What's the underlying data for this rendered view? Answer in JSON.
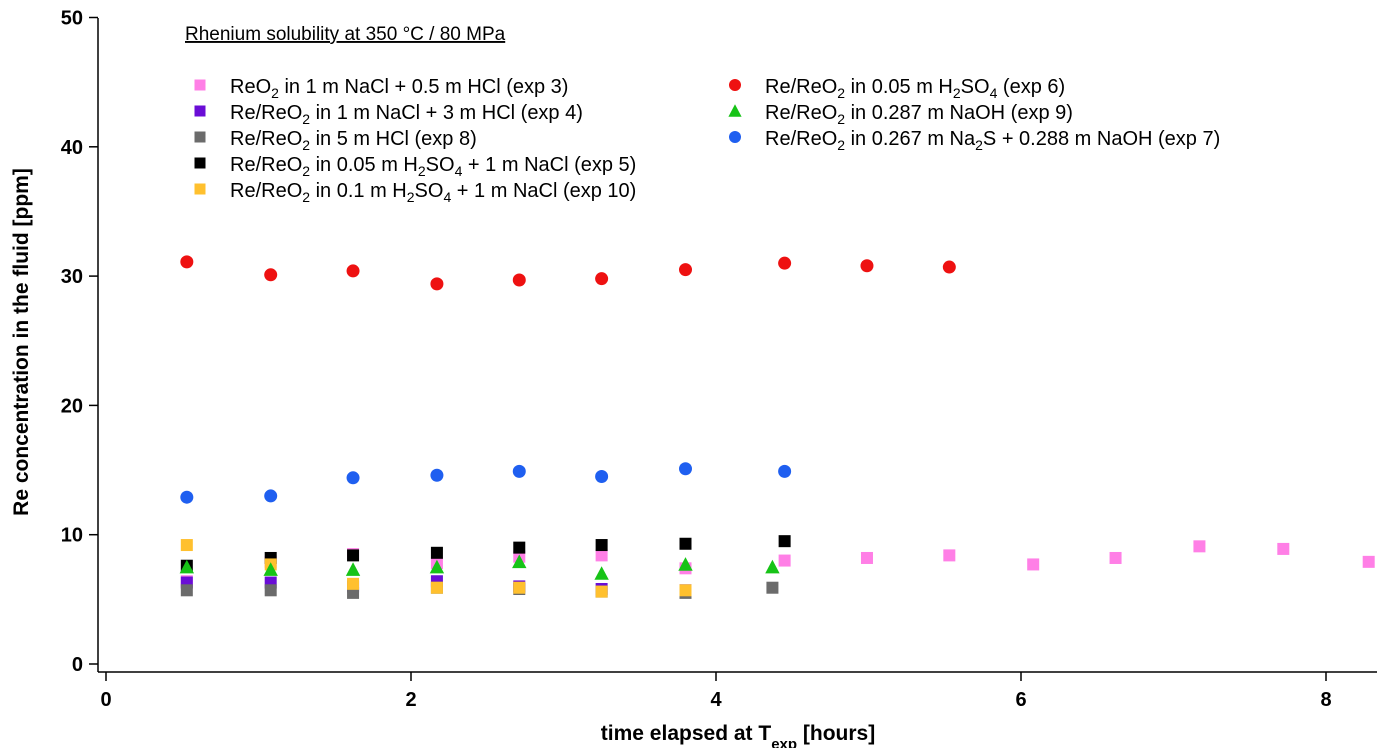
{
  "chart_data": {
    "type": "scatter",
    "title": "Rhenium solubility at 350 °C / 80 MPa",
    "xlabel": {
      "main": "time elapsed at T",
      "sub": "exp",
      "tail": " [hours]"
    },
    "ylabel": "Re concentration in the fluid [ppm]",
    "xlim": [
      0,
      8.3
    ],
    "ylim": [
      0,
      50
    ],
    "xticks": [
      0,
      2,
      4,
      6,
      8
    ],
    "yticks": [
      0,
      10,
      20,
      30,
      40,
      50
    ],
    "grid": false,
    "legend_position": "top",
    "series": [
      {
        "name": "ReO2 in 1 m NaCl + 0.5 m HCl (exp 3)",
        "label_parts": [
          [
            "ReO",
            ""
          ],
          [
            "2",
            "sub"
          ],
          [
            " in 1 m NaCl + 0.5 m HCl (exp 3)",
            ""
          ]
        ],
        "marker": "square",
        "color": "#ff7fe6",
        "x": [
          0.53,
          1.08,
          1.62,
          2.17,
          2.71,
          3.25,
          3.8,
          4.45,
          4.99,
          5.53,
          6.08,
          6.62,
          7.17,
          7.72,
          8.28
        ],
        "y": [
          6.4,
          7.9,
          8.5,
          7.8,
          8.3,
          8.4,
          7.4,
          8.0,
          8.2,
          8.4,
          7.7,
          8.2,
          9.1,
          8.9,
          7.9
        ]
      },
      {
        "name": "Re/ReO2 in 1 m NaCl + 3 m HCl (exp 4)",
        "label_parts": [
          [
            "Re/ReO",
            ""
          ],
          [
            "2",
            "sub"
          ],
          [
            " in 1 m NaCl + 3 m HCl (exp 4)",
            ""
          ]
        ],
        "marker": "square",
        "color": "#6a0dd6",
        "x": [
          0.53,
          1.08,
          1.62,
          2.17,
          2.71,
          3.25,
          3.8
        ],
        "y": [
          6.3,
          6.3,
          6.0,
          6.4,
          6.0,
          5.8,
          5.7
        ]
      },
      {
        "name": "Re/ReO2 in 5 m HCl (exp 8)",
        "label_parts": [
          [
            "Re/ReO",
            ""
          ],
          [
            "2",
            "sub"
          ],
          [
            " in 5 m HCl (exp 8)",
            ""
          ]
        ],
        "marker": "square",
        "color": "#6b6b6b",
        "x": [
          0.53,
          1.08,
          1.62,
          2.17,
          2.71,
          3.25,
          3.8,
          4.37
        ],
        "y": [
          5.7,
          5.7,
          5.5,
          5.9,
          5.8,
          5.6,
          5.5,
          5.9
        ]
      },
      {
        "name": "Re/ReO2 in 0.05 m H2SO4 + 1 m NaCl (exp 5)",
        "label_parts": [
          [
            "Re/ReO",
            ""
          ],
          [
            "2",
            "sub"
          ],
          [
            " in 0.05 m H",
            ""
          ],
          [
            "2",
            "sub"
          ],
          [
            "SO",
            ""
          ],
          [
            "4",
            "sub"
          ],
          [
            " + 1 m NaCl (exp 5)",
            ""
          ]
        ],
        "marker": "square",
        "color": "#000000",
        "x": [
          0.53,
          1.08,
          1.62,
          2.17,
          2.71,
          3.25,
          3.8,
          4.45
        ],
        "y": [
          7.6,
          8.2,
          8.4,
          8.6,
          9.0,
          9.2,
          9.3,
          9.5
        ]
      },
      {
        "name": "Re/ReO2 in 0.1 m H2SO4 + 1 m NaCl (exp 10)",
        "label_parts": [
          [
            "Re/ReO",
            ""
          ],
          [
            "2",
            "sub"
          ],
          [
            " in 0.1 m H",
            ""
          ],
          [
            "2",
            "sub"
          ],
          [
            "SO",
            ""
          ],
          [
            "4",
            "sub"
          ],
          [
            " + 1 m NaCl (exp 10)",
            ""
          ]
        ],
        "marker": "square",
        "color": "#ffc02e",
        "x": [
          0.53,
          1.08,
          1.62,
          2.17,
          2.71,
          3.25,
          3.8
        ],
        "y": [
          9.2,
          7.7,
          6.2,
          5.9,
          5.9,
          5.6,
          5.7
        ]
      },
      {
        "name": "Re/ReO2 in 0.05 m H2SO4 (exp 6)",
        "label_parts": [
          [
            "Re/ReO",
            ""
          ],
          [
            "2",
            "sub"
          ],
          [
            " in 0.05 m H",
            ""
          ],
          [
            "2",
            "sub"
          ],
          [
            "SO",
            ""
          ],
          [
            "4",
            "sub"
          ],
          [
            " (exp 6)",
            ""
          ]
        ],
        "marker": "circle",
        "color": "#ee1111",
        "x": [
          0.53,
          1.08,
          1.62,
          2.17,
          2.71,
          3.25,
          3.8,
          4.45,
          4.99,
          5.53
        ],
        "y": [
          31.1,
          30.1,
          30.4,
          29.4,
          29.7,
          29.8,
          30.5,
          31.0,
          30.8,
          30.7
        ]
      },
      {
        "name": "Re/ReO2 in 0.287 m NaOH (exp 9)",
        "label_parts": [
          [
            "Re/ReO",
            ""
          ],
          [
            "2",
            "sub"
          ],
          [
            " in 0.287 m NaOH (exp 9)",
            ""
          ]
        ],
        "marker": "triangle",
        "color": "#17c317",
        "x": [
          0.53,
          1.08,
          1.62,
          2.17,
          2.71,
          3.25,
          3.8,
          4.37
        ],
        "y": [
          7.5,
          7.3,
          7.3,
          7.5,
          7.9,
          7.0,
          7.7,
          7.5
        ]
      },
      {
        "name": "Re/ReO2 in 0.267 m Na2S + 0.288 m NaOH (exp 7)",
        "label_parts": [
          [
            "Re/ReO",
            ""
          ],
          [
            "2",
            "sub"
          ],
          [
            " in 0.267 m Na",
            ""
          ],
          [
            "2",
            "sub"
          ],
          [
            "S + 0.288 m NaOH (exp 7)",
            ""
          ]
        ],
        "marker": "circle",
        "color": "#1f5ff0",
        "x": [
          0.53,
          1.08,
          1.62,
          2.17,
          2.71,
          3.25,
          3.8,
          4.45
        ],
        "y": [
          12.9,
          13.0,
          14.4,
          14.6,
          14.9,
          14.5,
          15.1,
          14.9
        ]
      }
    ]
  }
}
